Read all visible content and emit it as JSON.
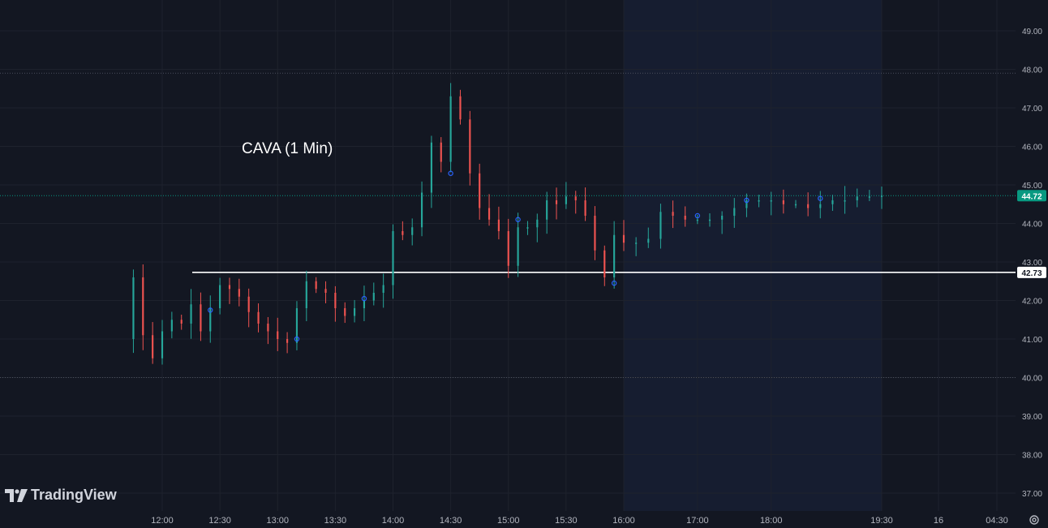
{
  "brand": {
    "name": "TradingView",
    "logo_icon": "tradingview-logo-icon"
  },
  "icons": {
    "settings": "gear-icon"
  },
  "colors": {
    "background": "#131722",
    "after_hours_band": "#161d30",
    "grid": "#1e222d",
    "up": "#26a69a",
    "down": "#ef5350",
    "level_line": "#ffffff",
    "dotted_level": "#4a4f5c",
    "last_price_badge": "#089981",
    "axis_text": "#b2b5be",
    "marker": "#2962ff"
  },
  "chart_data": {
    "type": "candlestick",
    "title": "CAVA (1 Min)",
    "xlabel": "",
    "ylabel": "",
    "ylim": [
      36.7,
      49.4
    ],
    "yticks": [
      "37.00",
      "38.00",
      "39.00",
      "40.00",
      "41.00",
      "42.00",
      "43.00",
      "44.00",
      "45.00",
      "46.00",
      "47.00",
      "48.00",
      "49.00"
    ],
    "xticks": [
      {
        "label": "12:00",
        "t": "12:00"
      },
      {
        "label": "12:30",
        "t": "12:30"
      },
      {
        "label": "13:00",
        "t": "13:00"
      },
      {
        "label": "13:30",
        "t": "13:30"
      },
      {
        "label": "14:00",
        "t": "14:00"
      },
      {
        "label": "14:30",
        "t": "14:30"
      },
      {
        "label": "15:00",
        "t": "15:00"
      },
      {
        "label": "15:30",
        "t": "15:30"
      },
      {
        "label": "16:00",
        "t": "16:00"
      },
      {
        "label": "17:00",
        "t": "17:00"
      },
      {
        "label": "18:00",
        "t": "18:00"
      },
      {
        "label": "19:30",
        "t": "19:30"
      },
      {
        "label": "16",
        "t": "day"
      },
      {
        "label": "04:30",
        "t": "04:30"
      }
    ],
    "session_x": [
      "11:45",
      "11:50",
      "11:55",
      "12:00",
      "12:05",
      "12:10",
      "12:15",
      "12:20",
      "12:25",
      "12:30",
      "12:35",
      "12:40",
      "12:45",
      "12:50",
      "12:55",
      "13:00",
      "13:05",
      "13:10",
      "13:15",
      "13:20",
      "13:25",
      "13:30",
      "13:35",
      "13:40",
      "13:45",
      "13:50",
      "13:55",
      "14:00",
      "14:05",
      "14:10",
      "14:15",
      "14:20",
      "14:25",
      "14:30",
      "14:35",
      "14:40",
      "14:45",
      "14:50",
      "14:55",
      "15:00",
      "15:05",
      "15:10",
      "15:15",
      "15:20",
      "15:25",
      "15:30",
      "15:35",
      "15:40",
      "15:45",
      "15:50",
      "15:55",
      "16:00"
    ],
    "session_close": [
      42.6,
      41.1,
      40.5,
      41.2,
      41.5,
      41.4,
      41.9,
      41.2,
      41.8,
      42.4,
      42.3,
      42.1,
      41.7,
      41.4,
      41.2,
      41.0,
      40.9,
      41.8,
      42.5,
      42.3,
      42.2,
      41.8,
      41.6,
      41.8,
      42.0,
      42.2,
      42.4,
      43.8,
      43.7,
      43.9,
      44.8,
      46.1,
      45.6,
      47.3,
      46.7,
      45.3,
      44.4,
      44.1,
      43.8,
      42.9,
      43.9,
      43.9,
      44.1,
      44.6,
      44.5,
      44.7,
      44.6,
      44.2,
      43.3,
      42.6,
      43.7,
      43.5
    ],
    "after_x": [
      "16:10",
      "16:20",
      "16:30",
      "16:40",
      "16:50",
      "17:00",
      "17:10",
      "17:20",
      "17:30",
      "17:40",
      "17:50",
      "18:00",
      "18:10",
      "18:20",
      "18:30",
      "18:40",
      "18:50",
      "19:00",
      "19:10",
      "19:20",
      "19:30"
    ],
    "after_close": [
      43.5,
      43.6,
      44.3,
      44.2,
      44.1,
      44.1,
      44.1,
      44.2,
      44.4,
      44.6,
      44.6,
      44.6,
      44.5,
      44.5,
      44.4,
      44.5,
      44.6,
      44.6,
      44.7,
      44.7,
      44.72
    ],
    "levels": {
      "horizontal_line": 42.73,
      "high_dotted": 47.9,
      "low_dotted": 40.0,
      "last_price_dotted": 44.72
    },
    "price_labels": {
      "last": "44.72",
      "line": "42.73"
    },
    "after_hours_band": [
      "16:00",
      "19:30"
    ],
    "grid": true
  }
}
